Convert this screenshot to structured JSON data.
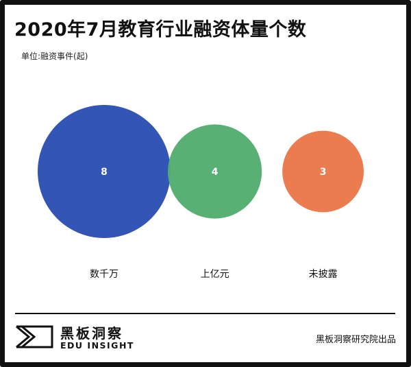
{
  "header": {
    "title": "2020年7月教育行业融资体量个数",
    "unit": "单位:融资事件(起)"
  },
  "chart_data": {
    "type": "bubble",
    "categories": [
      "数千万",
      "上亿元",
      "未披露"
    ],
    "values": [
      8,
      4,
      3
    ],
    "colors": [
      "#2c50b4",
      "#53ad6f",
      "#ea784a"
    ],
    "value_label_color": "#ffffff",
    "legend": "none",
    "grid": false
  },
  "footer": {
    "logo_cn": "黑板洞察",
    "logo_en": "EDU INSIGHT",
    "source": "黑板洞察研究院出品"
  }
}
